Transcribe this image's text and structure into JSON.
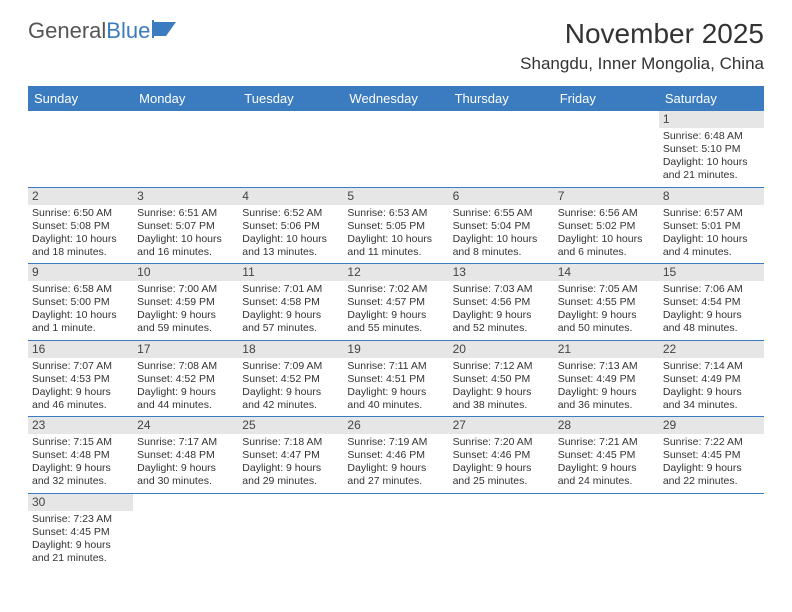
{
  "logo": {
    "text1": "General",
    "text2": "Blue"
  },
  "title": "November 2025",
  "location": "Shangdu, Inner Mongolia, China",
  "headers": [
    "Sunday",
    "Monday",
    "Tuesday",
    "Wednesday",
    "Thursday",
    "Friday",
    "Saturday"
  ],
  "colors": {
    "header_bg": "#3b7bbf",
    "daynum_bg": "#e6e6e6",
    "row_border": "#3b7bbf"
  },
  "weeks": [
    [
      {
        "n": "",
        "sr": "",
        "ss": "",
        "dl": ""
      },
      {
        "n": "",
        "sr": "",
        "ss": "",
        "dl": ""
      },
      {
        "n": "",
        "sr": "",
        "ss": "",
        "dl": ""
      },
      {
        "n": "",
        "sr": "",
        "ss": "",
        "dl": ""
      },
      {
        "n": "",
        "sr": "",
        "ss": "",
        "dl": ""
      },
      {
        "n": "",
        "sr": "",
        "ss": "",
        "dl": ""
      },
      {
        "n": "1",
        "sr": "Sunrise: 6:48 AM",
        "ss": "Sunset: 5:10 PM",
        "dl": "Daylight: 10 hours and 21 minutes."
      }
    ],
    [
      {
        "n": "2",
        "sr": "Sunrise: 6:50 AM",
        "ss": "Sunset: 5:08 PM",
        "dl": "Daylight: 10 hours and 18 minutes."
      },
      {
        "n": "3",
        "sr": "Sunrise: 6:51 AM",
        "ss": "Sunset: 5:07 PM",
        "dl": "Daylight: 10 hours and 16 minutes."
      },
      {
        "n": "4",
        "sr": "Sunrise: 6:52 AM",
        "ss": "Sunset: 5:06 PM",
        "dl": "Daylight: 10 hours and 13 minutes."
      },
      {
        "n": "5",
        "sr": "Sunrise: 6:53 AM",
        "ss": "Sunset: 5:05 PM",
        "dl": "Daylight: 10 hours and 11 minutes."
      },
      {
        "n": "6",
        "sr": "Sunrise: 6:55 AM",
        "ss": "Sunset: 5:04 PM",
        "dl": "Daylight: 10 hours and 8 minutes."
      },
      {
        "n": "7",
        "sr": "Sunrise: 6:56 AM",
        "ss": "Sunset: 5:02 PM",
        "dl": "Daylight: 10 hours and 6 minutes."
      },
      {
        "n": "8",
        "sr": "Sunrise: 6:57 AM",
        "ss": "Sunset: 5:01 PM",
        "dl": "Daylight: 10 hours and 4 minutes."
      }
    ],
    [
      {
        "n": "9",
        "sr": "Sunrise: 6:58 AM",
        "ss": "Sunset: 5:00 PM",
        "dl": "Daylight: 10 hours and 1 minute."
      },
      {
        "n": "10",
        "sr": "Sunrise: 7:00 AM",
        "ss": "Sunset: 4:59 PM",
        "dl": "Daylight: 9 hours and 59 minutes."
      },
      {
        "n": "11",
        "sr": "Sunrise: 7:01 AM",
        "ss": "Sunset: 4:58 PM",
        "dl": "Daylight: 9 hours and 57 minutes."
      },
      {
        "n": "12",
        "sr": "Sunrise: 7:02 AM",
        "ss": "Sunset: 4:57 PM",
        "dl": "Daylight: 9 hours and 55 minutes."
      },
      {
        "n": "13",
        "sr": "Sunrise: 7:03 AM",
        "ss": "Sunset: 4:56 PM",
        "dl": "Daylight: 9 hours and 52 minutes."
      },
      {
        "n": "14",
        "sr": "Sunrise: 7:05 AM",
        "ss": "Sunset: 4:55 PM",
        "dl": "Daylight: 9 hours and 50 minutes."
      },
      {
        "n": "15",
        "sr": "Sunrise: 7:06 AM",
        "ss": "Sunset: 4:54 PM",
        "dl": "Daylight: 9 hours and 48 minutes."
      }
    ],
    [
      {
        "n": "16",
        "sr": "Sunrise: 7:07 AM",
        "ss": "Sunset: 4:53 PM",
        "dl": "Daylight: 9 hours and 46 minutes."
      },
      {
        "n": "17",
        "sr": "Sunrise: 7:08 AM",
        "ss": "Sunset: 4:52 PM",
        "dl": "Daylight: 9 hours and 44 minutes."
      },
      {
        "n": "18",
        "sr": "Sunrise: 7:09 AM",
        "ss": "Sunset: 4:52 PM",
        "dl": "Daylight: 9 hours and 42 minutes."
      },
      {
        "n": "19",
        "sr": "Sunrise: 7:11 AM",
        "ss": "Sunset: 4:51 PM",
        "dl": "Daylight: 9 hours and 40 minutes."
      },
      {
        "n": "20",
        "sr": "Sunrise: 7:12 AM",
        "ss": "Sunset: 4:50 PM",
        "dl": "Daylight: 9 hours and 38 minutes."
      },
      {
        "n": "21",
        "sr": "Sunrise: 7:13 AM",
        "ss": "Sunset: 4:49 PM",
        "dl": "Daylight: 9 hours and 36 minutes."
      },
      {
        "n": "22",
        "sr": "Sunrise: 7:14 AM",
        "ss": "Sunset: 4:49 PM",
        "dl": "Daylight: 9 hours and 34 minutes."
      }
    ],
    [
      {
        "n": "23",
        "sr": "Sunrise: 7:15 AM",
        "ss": "Sunset: 4:48 PM",
        "dl": "Daylight: 9 hours and 32 minutes."
      },
      {
        "n": "24",
        "sr": "Sunrise: 7:17 AM",
        "ss": "Sunset: 4:48 PM",
        "dl": "Daylight: 9 hours and 30 minutes."
      },
      {
        "n": "25",
        "sr": "Sunrise: 7:18 AM",
        "ss": "Sunset: 4:47 PM",
        "dl": "Daylight: 9 hours and 29 minutes."
      },
      {
        "n": "26",
        "sr": "Sunrise: 7:19 AM",
        "ss": "Sunset: 4:46 PM",
        "dl": "Daylight: 9 hours and 27 minutes."
      },
      {
        "n": "27",
        "sr": "Sunrise: 7:20 AM",
        "ss": "Sunset: 4:46 PM",
        "dl": "Daylight: 9 hours and 25 minutes."
      },
      {
        "n": "28",
        "sr": "Sunrise: 7:21 AM",
        "ss": "Sunset: 4:45 PM",
        "dl": "Daylight: 9 hours and 24 minutes."
      },
      {
        "n": "29",
        "sr": "Sunrise: 7:22 AM",
        "ss": "Sunset: 4:45 PM",
        "dl": "Daylight: 9 hours and 22 minutes."
      }
    ],
    [
      {
        "n": "30",
        "sr": "Sunrise: 7:23 AM",
        "ss": "Sunset: 4:45 PM",
        "dl": "Daylight: 9 hours and 21 minutes."
      },
      {
        "n": "",
        "sr": "",
        "ss": "",
        "dl": ""
      },
      {
        "n": "",
        "sr": "",
        "ss": "",
        "dl": ""
      },
      {
        "n": "",
        "sr": "",
        "ss": "",
        "dl": ""
      },
      {
        "n": "",
        "sr": "",
        "ss": "",
        "dl": ""
      },
      {
        "n": "",
        "sr": "",
        "ss": "",
        "dl": ""
      },
      {
        "n": "",
        "sr": "",
        "ss": "",
        "dl": ""
      }
    ]
  ]
}
